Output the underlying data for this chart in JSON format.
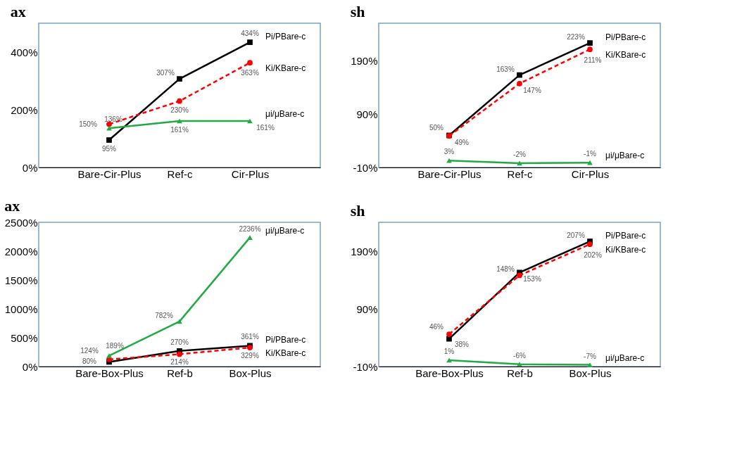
{
  "chart_data": [
    {
      "type": "line",
      "title": "ax",
      "categories": [
        "Bare-Cir-Plus",
        "Ref-c",
        "Cir-Plus"
      ],
      "ylim": [
        0,
        500
      ],
      "yticks": [
        {
          "value": 0,
          "label": "0%"
        },
        {
          "value": 200,
          "label": "200%"
        },
        {
          "value": 400,
          "label": "400%"
        }
      ],
      "series": [
        {
          "name": "Pi/PBare-c",
          "color": "#000000",
          "marker": "square",
          "line_style": "solid",
          "values": [
            95,
            307,
            434
          ],
          "value_labels": [
            "95%",
            "307%",
            "434%"
          ]
        },
        {
          "name": "Ki/KBare-c",
          "color": "#ff0000",
          "marker": "circle",
          "line_style": "dashed",
          "values": [
            150,
            230,
            363
          ],
          "value_labels": [
            "150%",
            "230%",
            "363%"
          ]
        },
        {
          "name": "μi/μBare-c",
          "color": "#22aa44",
          "marker": "triangle",
          "line_style": "solid",
          "values": [
            136,
            161,
            161
          ],
          "value_labels": [
            "136%",
            "161%",
            "161%"
          ]
        }
      ]
    },
    {
      "type": "line",
      "title": "sh",
      "categories": [
        "Bare-Cir-Plus",
        "Ref-c",
        "Cir-Plus"
      ],
      "ylim": [
        -10,
        260
      ],
      "yticks": [
        {
          "value": -10,
          "label": "-10%"
        },
        {
          "value": 90,
          "label": "90%"
        },
        {
          "value": 190,
          "label": "190%"
        }
      ],
      "series": [
        {
          "name": "Pi/PBare-c",
          "color": "#000000",
          "marker": "square",
          "line_style": "solid",
          "values": [
            50,
            163,
            223
          ],
          "value_labels": [
            "50%",
            "163%",
            "223%"
          ]
        },
        {
          "name": "Ki/KBare-c",
          "color": "#ff0000",
          "marker": "circle",
          "line_style": "dashed",
          "values": [
            49,
            147,
            211
          ],
          "value_labels": [
            "49%",
            "147%",
            "211%"
          ]
        },
        {
          "name": "μi/μBare-c",
          "color": "#22aa44",
          "marker": "triangle",
          "line_style": "solid",
          "values": [
            3,
            -2,
            -1
          ],
          "value_labels": [
            "3%",
            "-2%",
            "-1%"
          ]
        }
      ]
    },
    {
      "type": "line",
      "title": "ax",
      "categories": [
        "Bare-Box-Plus",
        "Ref-b",
        "Box-Plus"
      ],
      "ylim": [
        0,
        2500
      ],
      "yticks": [
        {
          "value": 0,
          "label": "0%"
        },
        {
          "value": 500,
          "label": "500%"
        },
        {
          "value": 1000,
          "label": "1000%"
        },
        {
          "value": 1500,
          "label": "1500%"
        },
        {
          "value": 2000,
          "label": "2000%"
        },
        {
          "value": 2500,
          "label": "2500%"
        }
      ],
      "series": [
        {
          "name": "Pi/PBare-c",
          "color": "#000000",
          "marker": "square",
          "line_style": "solid",
          "values": [
            80,
            270,
            361
          ],
          "value_labels": [
            "80%",
            "270%",
            "361%"
          ]
        },
        {
          "name": "Ki/KBare-c",
          "color": "#ff0000",
          "marker": "circle",
          "line_style": "dashed",
          "values": [
            124,
            214,
            329
          ],
          "value_labels": [
            "124%",
            "214%",
            "329%"
          ]
        },
        {
          "name": "μi/μBare-c",
          "color": "#22aa44",
          "marker": "triangle",
          "line_style": "solid",
          "values": [
            189,
            782,
            2236
          ],
          "value_labels": [
            "189%",
            "782%",
            "2236%"
          ]
        }
      ]
    },
    {
      "type": "line",
      "title": "sh",
      "categories": [
        "Bare-Box-Plus",
        "Ref-b",
        "Box-Plus"
      ],
      "ylim": [
        -10,
        240
      ],
      "yticks": [
        {
          "value": -10,
          "label": "-10%"
        },
        {
          "value": 90,
          "label": "90%"
        },
        {
          "value": 190,
          "label": "190%"
        }
      ],
      "series": [
        {
          "name": "Pi/PBare-c",
          "color": "#000000",
          "marker": "square",
          "line_style": "solid",
          "values": [
            38,
            153,
            207
          ],
          "value_labels": [
            "38%",
            "153%",
            "207%"
          ]
        },
        {
          "name": "Ki/KBare-c",
          "color": "#ff0000",
          "marker": "circle",
          "line_style": "dashed",
          "values": [
            46,
            148,
            202
          ],
          "value_labels": [
            "46%",
            "148%",
            "202%"
          ]
        },
        {
          "name": "μi/μBare-c",
          "color": "#22aa44",
          "marker": "triangle",
          "line_style": "solid",
          "values": [
            1,
            -6,
            -7
          ],
          "value_labels": [
            "1%",
            "-6%",
            "-7%"
          ]
        }
      ]
    }
  ]
}
